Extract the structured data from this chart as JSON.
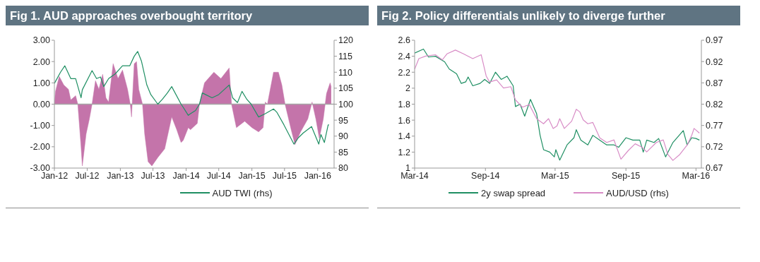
{
  "chart_data": [
    {
      "type": "line",
      "title": "Fig 1. AUD approaches overbought territory",
      "legend": "bottom",
      "marker": "none",
      "xlim": [
        "2012-01",
        "2016-04"
      ],
      "xticks": [
        {
          "value": "2012-01",
          "label": "Jan-12"
        },
        {
          "value": "2012-07",
          "label": "Jul-12"
        },
        {
          "value": "2013-01",
          "label": "Jan-13"
        },
        {
          "value": "2013-07",
          "label": "Jul-13"
        },
        {
          "value": "2014-01",
          "label": "Jan-14"
        },
        {
          "value": "2014-07",
          "label": "Jul-14"
        },
        {
          "value": "2015-01",
          "label": "Jan-15"
        },
        {
          "value": "2015-07",
          "label": "Jul-15"
        },
        {
          "value": "2016-01",
          "label": "Jan-16"
        }
      ],
      "ylim": [
        -3,
        3
      ],
      "yticks": [
        {
          "value": -3,
          "label": "-3.00"
        },
        {
          "value": -2,
          "label": "-2.00"
        },
        {
          "value": -1,
          "label": "-1.00"
        },
        {
          "value": 0,
          "label": "0.00"
        },
        {
          "value": 1,
          "label": "1.00"
        },
        {
          "value": 2,
          "label": "2.00"
        },
        {
          "value": 3,
          "label": "3.00"
        }
      ],
      "y2lim": [
        80,
        120
      ],
      "y2ticks": [
        80,
        85,
        90,
        95,
        100,
        105,
        110,
        115,
        120
      ],
      "ref_lines": [
        {
          "axis": "y",
          "value": 0,
          "color": "#a6a6a6"
        }
      ],
      "series": [
        {
          "type": "area",
          "color": "#c474aa",
          "x": [
            "2012-01-01",
            "2012-01-07",
            "2012-01-28",
            "2012-02-22",
            "2012-03-19",
            "2012-04-01",
            "2012-04-28",
            "2012-05-10",
            "2012-05-28",
            "2012-06-04",
            "2012-06-25",
            "2012-07-13",
            "2012-07-28",
            "2012-08-16",
            "2012-09-04",
            "2012-09-25",
            "2012-10-13",
            "2012-10-28",
            "2012-11-22",
            "2012-12-19",
            "2013-01-13",
            "2013-02-10",
            "2013-02-25",
            "2013-03-04",
            "2013-03-19",
            "2013-04-01",
            "2013-04-13",
            "2013-05-04",
            "2013-05-16",
            "2013-06-04",
            "2013-06-25",
            "2013-07-28",
            "2013-09-04",
            "2013-10-13",
            "2013-11-10",
            "2013-12-04",
            "2013-12-16",
            "2014-01-13",
            "2014-01-25",
            "2014-03-04",
            "2014-03-16",
            "2014-04-13",
            "2014-06-04",
            "2014-07-13",
            "2014-08-28",
            "2014-09-10",
            "2014-10-07",
            "2014-11-22",
            "2015-01-01",
            "2015-02-07",
            "2015-03-04",
            "2015-03-16",
            "2015-03-28",
            "2015-05-01",
            "2015-05-28",
            "2015-06-16",
            "2015-07-04",
            "2015-08-07",
            "2015-08-28",
            "2015-09-28",
            "2015-11-07",
            "2015-12-01",
            "2015-12-22",
            "2016-01-10",
            "2016-02-01",
            "2016-02-19",
            "2016-03-10",
            "2016-03-16"
          ],
          "values": [
            0,
            0.6,
            1.3,
            0.9,
            0.7,
            0.2,
            0.4,
            0,
            -2.0,
            -2.9,
            -1.4,
            -0.7,
            0,
            1.1,
            0.7,
            1.4,
            0.3,
            0.1,
            1.9,
            1.2,
            1.6,
            0.7,
            0,
            -0.6,
            1.9,
            2.0,
            0.7,
            0,
            -1.4,
            -2.7,
            -2.9,
            -2.5,
            -2.1,
            -0.6,
            -1.2,
            -1.8,
            -1.7,
            -1.1,
            -1.2,
            -0.9,
            0,
            1.0,
            1.5,
            1.2,
            1.7,
            0,
            -1.1,
            -0.8,
            -1.1,
            -1.3,
            -1.1,
            0.1,
            0,
            1.5,
            1.5,
            0.9,
            0,
            -1.2,
            -1.9,
            -1.3,
            -0.7,
            0.1,
            -0.7,
            -1.6,
            -0.7,
            0.5,
            1.0,
            0.8
          ]
        },
        {
          "name": "AUD TWI (rhs)",
          "axis": "y2",
          "color": "#1f8f63",
          "x": [
            "2012-01-01",
            "2012-02-04",
            "2012-02-28",
            "2012-04-01",
            "2012-04-28",
            "2012-05-28",
            "2012-06-04",
            "2012-07-28",
            "2012-08-22",
            "2012-09-13",
            "2012-10-01",
            "2012-10-28",
            "2012-12-04",
            "2013-01-13",
            "2013-02-22",
            "2013-03-19",
            "2013-04-07",
            "2013-04-28",
            "2013-05-28",
            "2013-06-19",
            "2013-07-28",
            "2013-08-22",
            "2013-09-19",
            "2013-10-13",
            "2013-12-04",
            "2013-12-16",
            "2014-01-13",
            "2014-01-25",
            "2014-02-22",
            "2014-03-16",
            "2014-04-01",
            "2014-05-25",
            "2014-07-01",
            "2014-08-28",
            "2014-09-16",
            "2014-10-13",
            "2014-11-07",
            "2014-12-04",
            "2014-12-28",
            "2015-02-07",
            "2015-03-16",
            "2015-05-01",
            "2015-05-19",
            "2015-06-28",
            "2015-08-22",
            "2015-09-16",
            "2015-10-13",
            "2015-11-28",
            "2016-01-07",
            "2016-01-19",
            "2016-02-07",
            "2016-02-28",
            "2016-03-04"
          ],
          "values": [
            106.5,
            110,
            112,
            108,
            108,
            102,
            104.5,
            110.5,
            108,
            108.5,
            105.5,
            108,
            109.5,
            112,
            112,
            115,
            116.5,
            113.5,
            106,
            103,
            100,
            101.5,
            103.5,
            105.5,
            100,
            99,
            96.5,
            97,
            98,
            100,
            103.5,
            102,
            103,
            106,
            102,
            100.5,
            104,
            101.5,
            100,
            96,
            97,
            98.5,
            97.5,
            93.5,
            87.5,
            89.5,
            91,
            93,
            87.5,
            90.5,
            88,
            93.5,
            93.5
          ]
        }
      ]
    },
    {
      "type": "line",
      "title": "Fig 2. Policy differentials unlikely to diverge further",
      "legend": "bottom",
      "marker": "none",
      "xlim": [
        "2014-03",
        "2016-03-15"
      ],
      "xticks": [
        {
          "value": "2014-03",
          "label": "Mar-14"
        },
        {
          "value": "2014-09",
          "label": "Sep-14"
        },
        {
          "value": "2015-03",
          "label": "Mar-15"
        },
        {
          "value": "2015-09",
          "label": "Sep-15"
        },
        {
          "value": "2016-03",
          "label": "Mar-16"
        }
      ],
      "ylim": [
        1,
        2.6
      ],
      "yticks": [
        1,
        1.2,
        1.4,
        1.6,
        1.8,
        2,
        2.2,
        2.4,
        2.6
      ],
      "y2lim": [
        0.67,
        0.97
      ],
      "y2ticks": [
        0.67,
        0.72,
        0.77,
        0.82,
        0.87,
        0.92,
        0.97
      ],
      "series": [
        {
          "name": "2y swap spread",
          "color": "#1f8f63",
          "x": [
            "2014-03-01",
            "2014-03-24",
            "2014-04-06",
            "2014-04-24",
            "2014-05-18",
            "2014-05-30",
            "2014-06-18",
            "2014-06-30",
            "2014-07-12",
            "2014-07-18",
            "2014-07-30",
            "2014-08-18",
            "2014-08-30",
            "2014-09-12",
            "2014-09-27",
            "2014-10-12",
            "2014-10-27",
            "2014-11-12",
            "2014-11-18",
            "2014-11-30",
            "2014-12-12",
            "2014-12-27",
            "2015-01-12",
            "2015-01-21",
            "2015-01-30",
            "2015-02-15",
            "2015-02-27",
            "2015-03-03",
            "2015-03-13",
            "2015-04-01",
            "2015-04-19",
            "2015-04-25",
            "2015-05-07",
            "2015-05-25",
            "2015-06-07",
            "2015-06-25",
            "2015-07-13",
            "2015-08-01",
            "2015-08-13",
            "2015-09-01",
            "2015-09-19",
            "2015-10-07",
            "2015-10-16",
            "2015-10-25",
            "2015-11-13",
            "2015-11-25",
            "2015-12-13",
            "2016-01-01",
            "2016-01-28",
            "2016-02-07",
            "2016-02-19",
            "2016-03-01",
            "2016-03-10"
          ],
          "values": [
            2.44,
            2.49,
            2.39,
            2.4,
            2.33,
            2.24,
            2.18,
            2.06,
            2.08,
            2.14,
            2.03,
            2.06,
            2.11,
            2.06,
            2.2,
            2.11,
            2.15,
            2.03,
            1.77,
            1.8,
            1.65,
            1.86,
            1.68,
            1.41,
            1.23,
            1.2,
            1.14,
            1.23,
            1.1,
            1.29,
            1.38,
            1.48,
            1.35,
            1.29,
            1.41,
            1.35,
            1.29,
            1.29,
            1.26,
            1.38,
            1.35,
            1.35,
            1.2,
            1.35,
            1.32,
            1.37,
            1.14,
            1.32,
            1.47,
            1.29,
            1.38,
            1.37,
            1.35
          ]
        },
        {
          "name": "AUD/USD (rhs)",
          "axis": "y2",
          "color": "#d88cc6",
          "x": [
            "2014-03-01",
            "2014-03-12",
            "2014-03-30",
            "2014-04-24",
            "2014-05-12",
            "2014-05-24",
            "2014-06-15",
            "2014-07-06",
            "2014-07-30",
            "2014-08-21",
            "2014-09-03",
            "2014-09-12",
            "2014-09-30",
            "2014-10-18",
            "2014-11-06",
            "2014-11-18",
            "2014-12-06",
            "2014-12-24",
            "2015-01-12",
            "2015-01-30",
            "2015-02-12",
            "2015-02-24",
            "2015-03-06",
            "2015-03-13",
            "2015-03-25",
            "2015-04-13",
            "2015-04-25",
            "2015-05-04",
            "2015-05-13",
            "2015-05-25",
            "2015-06-07",
            "2015-06-25",
            "2015-07-13",
            "2015-08-01",
            "2015-08-19",
            "2015-09-07",
            "2015-09-25",
            "2015-10-13",
            "2015-10-25",
            "2015-11-19",
            "2015-12-07",
            "2015-12-19",
            "2016-01-01",
            "2016-01-19",
            "2016-02-07",
            "2016-02-19",
            "2016-02-25",
            "2016-03-10"
          ],
          "values": [
            0.902,
            0.927,
            0.933,
            0.936,
            0.924,
            0.938,
            0.947,
            0.938,
            0.927,
            0.936,
            0.886,
            0.872,
            0.877,
            0.858,
            0.861,
            0.83,
            0.813,
            0.819,
            0.786,
            0.774,
            0.786,
            0.763,
            0.769,
            0.786,
            0.763,
            0.78,
            0.808,
            0.802,
            0.783,
            0.774,
            0.777,
            0.741,
            0.73,
            0.736,
            0.691,
            0.711,
            0.727,
            0.719,
            0.708,
            0.73,
            0.736,
            0.702,
            0.688,
            0.702,
            0.724,
            0.747,
            0.763,
            0.752
          ]
        }
      ]
    }
  ]
}
